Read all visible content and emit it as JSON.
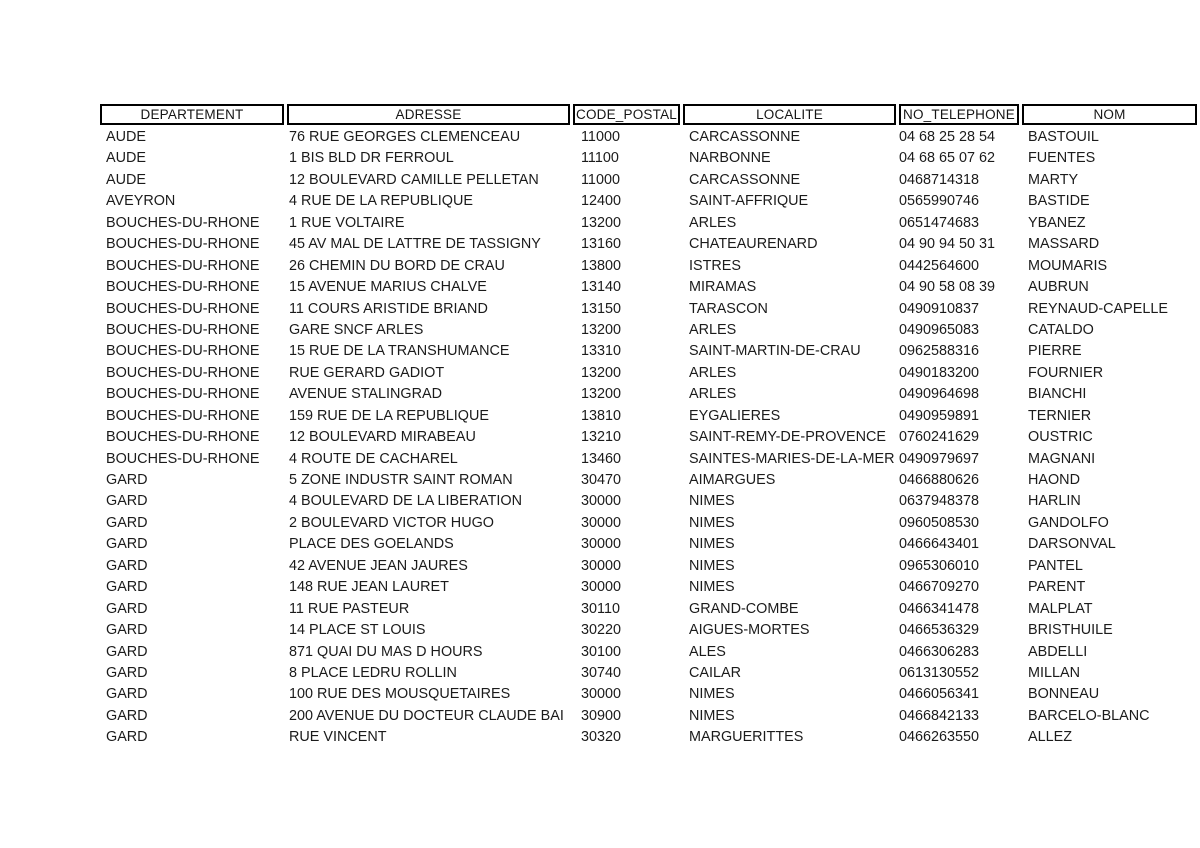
{
  "page": {
    "background": "#ffffff",
    "text_color": "#1b1b1b",
    "border_color": "#000000"
  },
  "table": {
    "columns": [
      {
        "key": "departement",
        "label": "DEPARTEMENT"
      },
      {
        "key": "adresse",
        "label": "ADRESSE"
      },
      {
        "key": "code_postal",
        "label": "CODE_POSTAL"
      },
      {
        "key": "localite",
        "label": "LOCALITE"
      },
      {
        "key": "no_telephone",
        "label": "NO_TELEPHONE"
      },
      {
        "key": "nom",
        "label": "NOM"
      }
    ],
    "rows": [
      [
        "AUDE",
        "76 RUE GEORGES CLEMENCEAU",
        "11000",
        "CARCASSONNE",
        "04 68 25 28 54",
        "BASTOUIL"
      ],
      [
        "AUDE",
        "1 BIS BLD DR FERROUL",
        "11100",
        "NARBONNE",
        "04 68 65 07 62",
        "FUENTES"
      ],
      [
        "AUDE",
        "12 BOULEVARD CAMILLE PELLETAN",
        "11000",
        "CARCASSONNE",
        "0468714318",
        "MARTY"
      ],
      [
        "AVEYRON",
        "4 RUE DE LA REPUBLIQUE",
        "12400",
        "SAINT-AFFRIQUE",
        "0565990746",
        "BASTIDE"
      ],
      [
        "BOUCHES-DU-RHONE",
        "1 RUE VOLTAIRE",
        "13200",
        "ARLES",
        "0651474683",
        "YBANEZ"
      ],
      [
        "BOUCHES-DU-RHONE",
        "45 AV MAL DE LATTRE DE TASSIGNY",
        "13160",
        "CHATEAURENARD",
        "04 90 94 50 31",
        "MASSARD"
      ],
      [
        "BOUCHES-DU-RHONE",
        "26 CHEMIN DU BORD DE CRAU",
        "13800",
        "ISTRES",
        "0442564600",
        "MOUMARIS"
      ],
      [
        "BOUCHES-DU-RHONE",
        "15 AVENUE MARIUS CHALVE",
        "13140",
        "MIRAMAS",
        "04 90 58 08 39",
        "AUBRUN"
      ],
      [
        "BOUCHES-DU-RHONE",
        "11 COURS ARISTIDE BRIAND",
        "13150",
        "TARASCON",
        "0490910837",
        "REYNAUD-CAPELLE"
      ],
      [
        "BOUCHES-DU-RHONE",
        "GARE SNCF ARLES",
        "13200",
        "ARLES",
        "0490965083",
        "CATALDO"
      ],
      [
        "BOUCHES-DU-RHONE",
        "15 RUE DE LA TRANSHUMANCE",
        "13310",
        "SAINT-MARTIN-DE-CRAU",
        "0962588316",
        "PIERRE"
      ],
      [
        "BOUCHES-DU-RHONE",
        "RUE GERARD GADIOT",
        "13200",
        "ARLES",
        "0490183200",
        "FOURNIER"
      ],
      [
        "BOUCHES-DU-RHONE",
        "AVENUE STALINGRAD",
        "13200",
        "ARLES",
        "0490964698",
        "BIANCHI"
      ],
      [
        "BOUCHES-DU-RHONE",
        "159 RUE DE LA REPUBLIQUE",
        "13810",
        "EYGALIERES",
        "0490959891",
        "TERNIER"
      ],
      [
        "BOUCHES-DU-RHONE",
        "12 BOULEVARD MIRABEAU",
        "13210",
        "SAINT-REMY-DE-PROVENCE",
        "0760241629",
        "OUSTRIC"
      ],
      [
        "BOUCHES-DU-RHONE",
        "4 ROUTE DE CACHAREL",
        "13460",
        "SAINTES-MARIES-DE-LA-MER",
        "0490979697",
        "MAGNANI"
      ],
      [
        "GARD",
        "5 ZONE INDUSTR SAINT ROMAN",
        "30470",
        "AIMARGUES",
        "0466880626",
        "HAOND"
      ],
      [
        "GARD",
        "4 BOULEVARD DE LA LIBERATION",
        "30000",
        "NIMES",
        "0637948378",
        "HARLIN"
      ],
      [
        "GARD",
        "2 BOULEVARD VICTOR HUGO",
        "30000",
        "NIMES",
        "0960508530",
        "GANDOLFO"
      ],
      [
        "GARD",
        "PLACE DES GOELANDS",
        "30000",
        "NIMES",
        "0466643401",
        "DARSONVAL"
      ],
      [
        "GARD",
        "42 AVENUE JEAN JAURES",
        "30000",
        "NIMES",
        "0965306010",
        "PANTEL"
      ],
      [
        "GARD",
        "148 RUE JEAN LAURET",
        "30000",
        "NIMES",
        "0466709270",
        "PARENT"
      ],
      [
        "GARD",
        "11 RUE PASTEUR",
        "30110",
        "GRAND-COMBE",
        "0466341478",
        "MALPLAT"
      ],
      [
        "GARD",
        "14 PLACE ST LOUIS",
        "30220",
        "AIGUES-MORTES",
        "0466536329",
        "BRISTHUILE"
      ],
      [
        "GARD",
        "871 QUAI DU MAS D HOURS",
        "30100",
        "ALES",
        "0466306283",
        "ABDELLI"
      ],
      [
        "GARD",
        "8 PLACE LEDRU ROLLIN",
        "30740",
        "CAILAR",
        "0613130552",
        "MILLAN"
      ],
      [
        "GARD",
        "100 RUE DES MOUSQUETAIRES",
        "30000",
        "NIMES",
        "0466056341",
        "BONNEAU"
      ],
      [
        "GARD",
        "200 AVENUE DU DOCTEUR CLAUDE BAI",
        "30900",
        "NIMES",
        "0466842133",
        "BARCELO-BLANC"
      ],
      [
        "GARD",
        "RUE VINCENT",
        "30320",
        "MARGUERITTES",
        "0466263550",
        "ALLEZ"
      ]
    ]
  }
}
